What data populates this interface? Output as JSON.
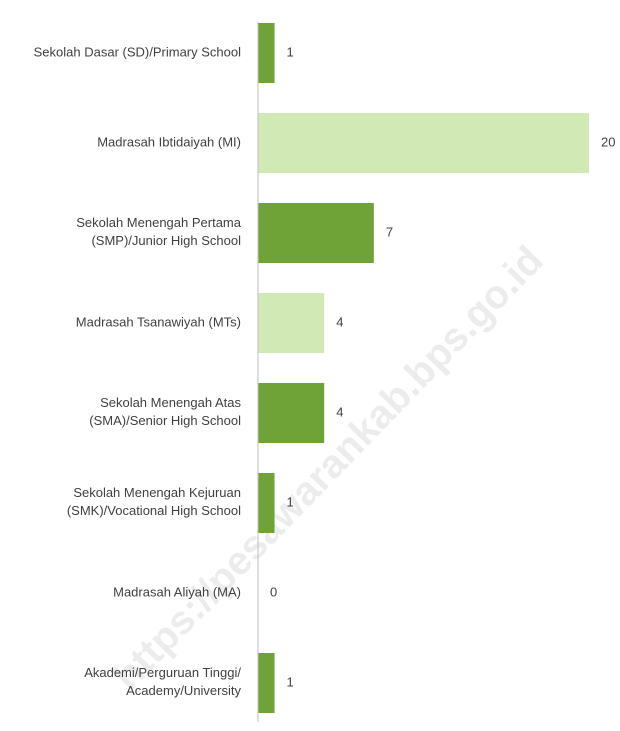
{
  "chart_data": {
    "type": "bar",
    "orientation": "horizontal",
    "categories": [
      "Sekolah Dasar (SD)/Primary School",
      "Madrasah Ibtidaiyah (MI)",
      "Sekolah Menengah Pertama\n(SMP)/Junior High School",
      "Madrasah Tsanawiyah (MTs)",
      "Sekolah Menengah Atas\n(SMA)/Senior High School",
      "Sekolah Menengah Kejuruan\n(SMK)/Vocational High School",
      "Madrasah Aliyah (MA)",
      "Akademi/Perguruan Tinggi/\nAcademy/University"
    ],
    "values": [
      1,
      20,
      7,
      4,
      4,
      1,
      0,
      1
    ],
    "colors": [
      "#70a337",
      "#d1e9b5",
      "#70a337",
      "#d1e9b5",
      "#70a337",
      "#70a337",
      "#70a337",
      "#70a337"
    ],
    "xlim": [
      0,
      20
    ],
    "watermark": "https://pesawarankab.bps.go.id"
  }
}
